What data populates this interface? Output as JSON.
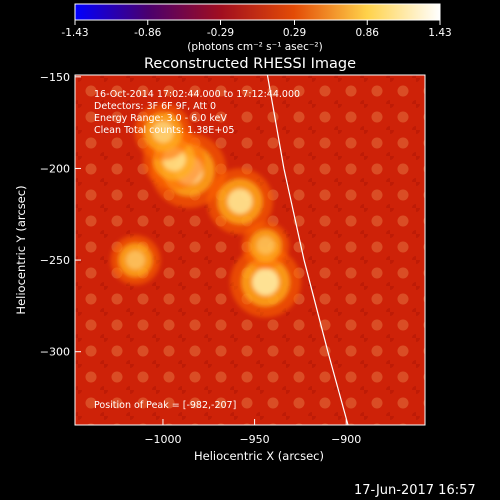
{
  "colorbar": {
    "ticks": [
      "-1.43",
      "-0.86",
      "-0.29",
      "0.29",
      "0.86",
      "1.43"
    ],
    "units": "(photons cm⁻² s⁻¹ asec⁻²)",
    "min": -1.43,
    "max": 1.43,
    "colormap": [
      "#0000ff",
      "#4a006e",
      "#a10e1f",
      "#e34b06",
      "#ffd24a",
      "#ffffff"
    ]
  },
  "image": {
    "title": "Reconstructed RHESSI Image",
    "info_lines": [
      "16-Oct-2014 17:02:44.000 to 17:12:44.000",
      "Detectors: 3F 6F 9F, Att 0",
      "Energy Range: 3.0 - 6.0 keV",
      "Clean     Total counts: 1.38E+05"
    ],
    "peak_label": "Position of Peak = [-982,-207]",
    "x_axis": {
      "label": "Heliocentric X (arcsec)",
      "range": [
        -1048,
        -857
      ],
      "ticks": [
        -1000,
        -950,
        -900
      ],
      "tick_labels": [
        "−1000",
        "−950",
        "−900"
      ]
    },
    "y_axis": {
      "label": "Heliocentric Y (arcsec)",
      "range": [
        -340,
        -149
      ],
      "ticks": [
        -150,
        -200,
        -250,
        -300
      ],
      "tick_labels": [
        "−150",
        "−200",
        "−250",
        "−300"
      ]
    },
    "sources": [
      {
        "x": -986,
        "y": -201,
        "intensity": 1.0
      },
      {
        "x": -994,
        "y": -195,
        "intensity": 0.7
      },
      {
        "x": -958,
        "y": -218,
        "intensity": 0.8
      },
      {
        "x": -944,
        "y": -262,
        "intensity": 0.9
      },
      {
        "x": -944,
        "y": -242,
        "intensity": 0.4
      },
      {
        "x": -1000,
        "y": -180,
        "intensity": 0.6
      },
      {
        "x": -1015,
        "y": -250,
        "intensity": 0.45
      }
    ],
    "limb": [
      [
        -943,
        -149
      ],
      [
        -934,
        -200
      ],
      [
        -923,
        -250
      ],
      [
        -910,
        -300
      ],
      [
        -899,
        -340
      ]
    ]
  },
  "footer": {
    "timestamp": "17-Jun-2017 16:57"
  }
}
